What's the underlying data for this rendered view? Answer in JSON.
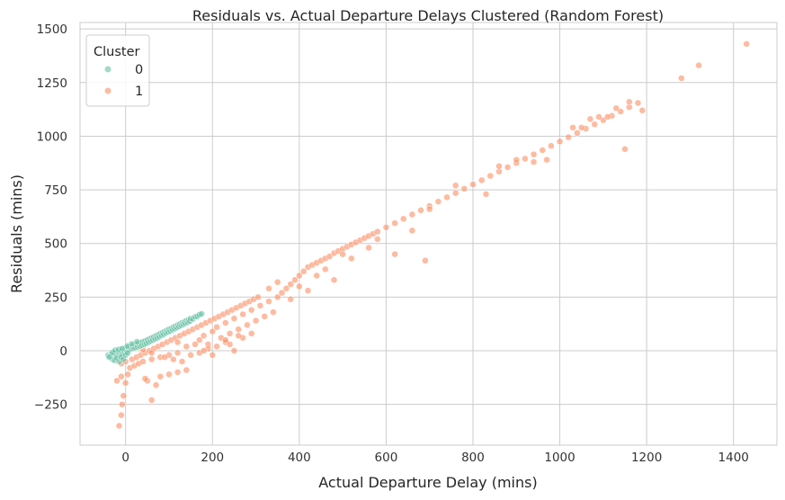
{
  "chart_data": {
    "type": "scatter",
    "title": "Residuals vs. Actual Departure Delays Clustered (Random Forest)",
    "xlabel": "Actual Departure Delay (mins)",
    "ylabel": "Residuals (mins)",
    "xlim": [
      -105,
      1500
    ],
    "ylim": [
      -440,
      1530
    ],
    "x_ticks": [
      0,
      200,
      400,
      600,
      800,
      1000,
      1200,
      1400
    ],
    "x_tick_labels": [
      "0",
      "200",
      "400",
      "600",
      "800",
      "1000",
      "1200",
      "1400"
    ],
    "y_ticks": [
      -250,
      0,
      250,
      500,
      750,
      1000,
      1250,
      1500
    ],
    "y_tick_labels": [
      "−250",
      "0",
      "250",
      "500",
      "750",
      "1000",
      "1250",
      "1500"
    ],
    "grid": true,
    "legend": {
      "title": "Cluster",
      "placement": "top-left"
    },
    "series": [
      {
        "name": "0",
        "color": "#66c2a5",
        "points": [
          [
            -40,
            -20
          ],
          [
            -35,
            -25
          ],
          [
            -32,
            -15
          ],
          [
            -28,
            -22
          ],
          [
            -25,
            -10
          ],
          [
            -22,
            -30
          ],
          [
            -20,
            -18
          ],
          [
            -18,
            -5
          ],
          [
            -15,
            -12
          ],
          [
            -12,
            -25
          ],
          [
            -10,
            -2
          ],
          [
            -8,
            -15
          ],
          [
            -5,
            5
          ],
          [
            -3,
            -8
          ],
          [
            0,
            10
          ],
          [
            2,
            -3
          ],
          [
            5,
            15
          ],
          [
            8,
            5
          ],
          [
            10,
            20
          ],
          [
            12,
            8
          ],
          [
            15,
            22
          ],
          [
            18,
            12
          ],
          [
            20,
            28
          ],
          [
            22,
            15
          ],
          [
            25,
            30
          ],
          [
            28,
            18
          ],
          [
            30,
            35
          ],
          [
            33,
            22
          ],
          [
            35,
            38
          ],
          [
            38,
            26
          ],
          [
            40,
            42
          ],
          [
            43,
            30
          ],
          [
            45,
            46
          ],
          [
            48,
            34
          ],
          [
            50,
            50
          ],
          [
            53,
            40
          ],
          [
            55,
            55
          ],
          [
            58,
            45
          ],
          [
            60,
            60
          ],
          [
            63,
            50
          ],
          [
            65,
            64
          ],
          [
            68,
            55
          ],
          [
            70,
            70
          ],
          [
            73,
            60
          ],
          [
            75,
            74
          ],
          [
            78,
            66
          ],
          [
            80,
            80
          ],
          [
            83,
            72
          ],
          [
            85,
            84
          ],
          [
            88,
            77
          ],
          [
            90,
            90
          ],
          [
            93,
            83
          ],
          [
            95,
            95
          ],
          [
            98,
            88
          ],
          [
            100,
            100
          ],
          [
            103,
            92
          ],
          [
            105,
            104
          ],
          [
            108,
            98
          ],
          [
            110,
            110
          ],
          [
            113,
            103
          ],
          [
            115,
            114
          ],
          [
            118,
            108
          ],
          [
            120,
            120
          ],
          [
            123,
            113
          ],
          [
            125,
            124
          ],
          [
            128,
            118
          ],
          [
            130,
            130
          ],
          [
            133,
            123
          ],
          [
            135,
            134
          ],
          [
            138,
            128
          ],
          [
            140,
            140
          ],
          [
            143,
            133
          ],
          [
            145,
            144
          ],
          [
            148,
            138
          ],
          [
            150,
            150
          ],
          [
            155,
            148
          ],
          [
            160,
            158
          ],
          [
            165,
            160
          ],
          [
            170,
            168
          ],
          [
            175,
            172
          ],
          [
            -30,
            -40
          ],
          [
            -25,
            -45
          ],
          [
            -20,
            -35
          ],
          [
            -15,
            -50
          ],
          [
            -10,
            -30
          ],
          [
            -5,
            -40
          ],
          [
            0,
            -20
          ],
          [
            5,
            -10
          ],
          [
            -38,
            -30
          ],
          [
            -30,
            -8
          ],
          [
            -24,
            2
          ],
          [
            -16,
            6
          ],
          [
            -8,
            10
          ],
          [
            4,
            22
          ],
          [
            14,
            32
          ],
          [
            26,
            42
          ]
        ]
      },
      {
        "name": "1",
        "color": "#fc8d62",
        "points": [
          [
            -15,
            -350
          ],
          [
            -10,
            -300
          ],
          [
            -8,
            -250
          ],
          [
            -5,
            -210
          ],
          [
            0,
            -150
          ],
          [
            -20,
            -140
          ],
          [
            -10,
            -120
          ],
          [
            5,
            -110
          ],
          [
            60,
            -230
          ],
          [
            70,
            -160
          ],
          [
            50,
            -140
          ],
          [
            45,
            -130
          ],
          [
            80,
            -120
          ],
          [
            100,
            -110
          ],
          [
            120,
            -100
          ],
          [
            140,
            -90
          ],
          [
            10,
            -80
          ],
          [
            20,
            -70
          ],
          [
            30,
            -60
          ],
          [
            40,
            -50
          ],
          [
            60,
            -40
          ],
          [
            80,
            -30
          ],
          [
            100,
            -20
          ],
          [
            120,
            -10
          ],
          [
            -10,
            -60
          ],
          [
            0,
            -50
          ],
          [
            15,
            -40
          ],
          [
            25,
            -30
          ],
          [
            35,
            -20
          ],
          [
            45,
            -10
          ],
          [
            55,
            0
          ],
          [
            65,
            10
          ],
          [
            75,
            20
          ],
          [
            85,
            30
          ],
          [
            95,
            40
          ],
          [
            105,
            50
          ],
          [
            115,
            60
          ],
          [
            125,
            70
          ],
          [
            135,
            80
          ],
          [
            145,
            90
          ],
          [
            155,
            100
          ],
          [
            165,
            110
          ],
          [
            175,
            120
          ],
          [
            185,
            130
          ],
          [
            195,
            140
          ],
          [
            205,
            150
          ],
          [
            215,
            160
          ],
          [
            225,
            170
          ],
          [
            235,
            180
          ],
          [
            245,
            190
          ],
          [
            255,
            200
          ],
          [
            265,
            210
          ],
          [
            275,
            220
          ],
          [
            285,
            230
          ],
          [
            295,
            240
          ],
          [
            305,
            250
          ],
          [
            170,
            50
          ],
          [
            180,
            70
          ],
          [
            190,
            30
          ],
          [
            200,
            90
          ],
          [
            210,
            110
          ],
          [
            220,
            60
          ],
          [
            230,
            130
          ],
          [
            240,
            80
          ],
          [
            250,
            150
          ],
          [
            260,
            100
          ],
          [
            270,
            170
          ],
          [
            280,
            120
          ],
          [
            290,
            190
          ],
          [
            300,
            140
          ],
          [
            310,
            210
          ],
          [
            320,
            160
          ],
          [
            330,
            230
          ],
          [
            340,
            180
          ],
          [
            350,
            250
          ],
          [
            360,
            270
          ],
          [
            370,
            290
          ],
          [
            380,
            310
          ],
          [
            390,
            330
          ],
          [
            400,
            350
          ],
          [
            410,
            370
          ],
          [
            420,
            390
          ],
          [
            430,
            400
          ],
          [
            440,
            410
          ],
          [
            450,
            420
          ],
          [
            460,
            430
          ],
          [
            470,
            440
          ],
          [
            480,
            455
          ],
          [
            490,
            465
          ],
          [
            500,
            475
          ],
          [
            510,
            485
          ],
          [
            520,
            495
          ],
          [
            530,
            505
          ],
          [
            540,
            515
          ],
          [
            550,
            525
          ],
          [
            560,
            535
          ],
          [
            570,
            545
          ],
          [
            580,
            555
          ],
          [
            600,
            575
          ],
          [
            620,
            595
          ],
          [
            640,
            615
          ],
          [
            660,
            635
          ],
          [
            680,
            655
          ],
          [
            700,
            675
          ],
          [
            720,
            695
          ],
          [
            740,
            715
          ],
          [
            760,
            735
          ],
          [
            780,
            755
          ],
          [
            800,
            775
          ],
          [
            820,
            795
          ],
          [
            840,
            815
          ],
          [
            860,
            835
          ],
          [
            880,
            855
          ],
          [
            900,
            875
          ],
          [
            920,
            895
          ],
          [
            940,
            915
          ],
          [
            960,
            935
          ],
          [
            980,
            955
          ],
          [
            1000,
            975
          ],
          [
            1020,
            995
          ],
          [
            1040,
            1015
          ],
          [
            1060,
            1035
          ],
          [
            1080,
            1055
          ],
          [
            1100,
            1075
          ],
          [
            1120,
            1095
          ],
          [
            1140,
            1115
          ],
          [
            1160,
            1135
          ],
          [
            1180,
            1155
          ],
          [
            330,
            290
          ],
          [
            350,
            320
          ],
          [
            380,
            240
          ],
          [
            400,
            300
          ],
          [
            420,
            280
          ],
          [
            440,
            350
          ],
          [
            460,
            380
          ],
          [
            480,
            330
          ],
          [
            500,
            450
          ],
          [
            520,
            430
          ],
          [
            560,
            480
          ],
          [
            580,
            520
          ],
          [
            620,
            450
          ],
          [
            660,
            560
          ],
          [
            690,
            420
          ],
          [
            700,
            660
          ],
          [
            760,
            770
          ],
          [
            830,
            730
          ],
          [
            860,
            860
          ],
          [
            900,
            890
          ],
          [
            940,
            880
          ],
          [
            970,
            890
          ],
          [
            1030,
            1040
          ],
          [
            1050,
            1040
          ],
          [
            1070,
            1080
          ],
          [
            1090,
            1090
          ],
          [
            1110,
            1090
          ],
          [
            1130,
            1130
          ],
          [
            1150,
            940
          ],
          [
            1160,
            1160
          ],
          [
            1190,
            1120
          ],
          [
            1280,
            1270
          ],
          [
            1320,
            1330
          ],
          [
            1430,
            1430
          ],
          [
            20,
            10
          ],
          [
            40,
            5
          ],
          [
            60,
            -10
          ],
          [
            90,
            -30
          ],
          [
            110,
            -40
          ],
          [
            130,
            -50
          ],
          [
            150,
            -20
          ],
          [
            170,
            -10
          ],
          [
            190,
            10
          ],
          [
            210,
            20
          ],
          [
            230,
            40
          ],
          [
            250,
            0
          ],
          [
            270,
            60
          ],
          [
            290,
            80
          ],
          [
            230,
            50
          ],
          [
            240,
            30
          ],
          [
            260,
            70
          ],
          [
            200,
            -20
          ],
          [
            180,
            0
          ],
          [
            160,
            30
          ],
          [
            140,
            20
          ],
          [
            120,
            40
          ]
        ]
      }
    ]
  }
}
